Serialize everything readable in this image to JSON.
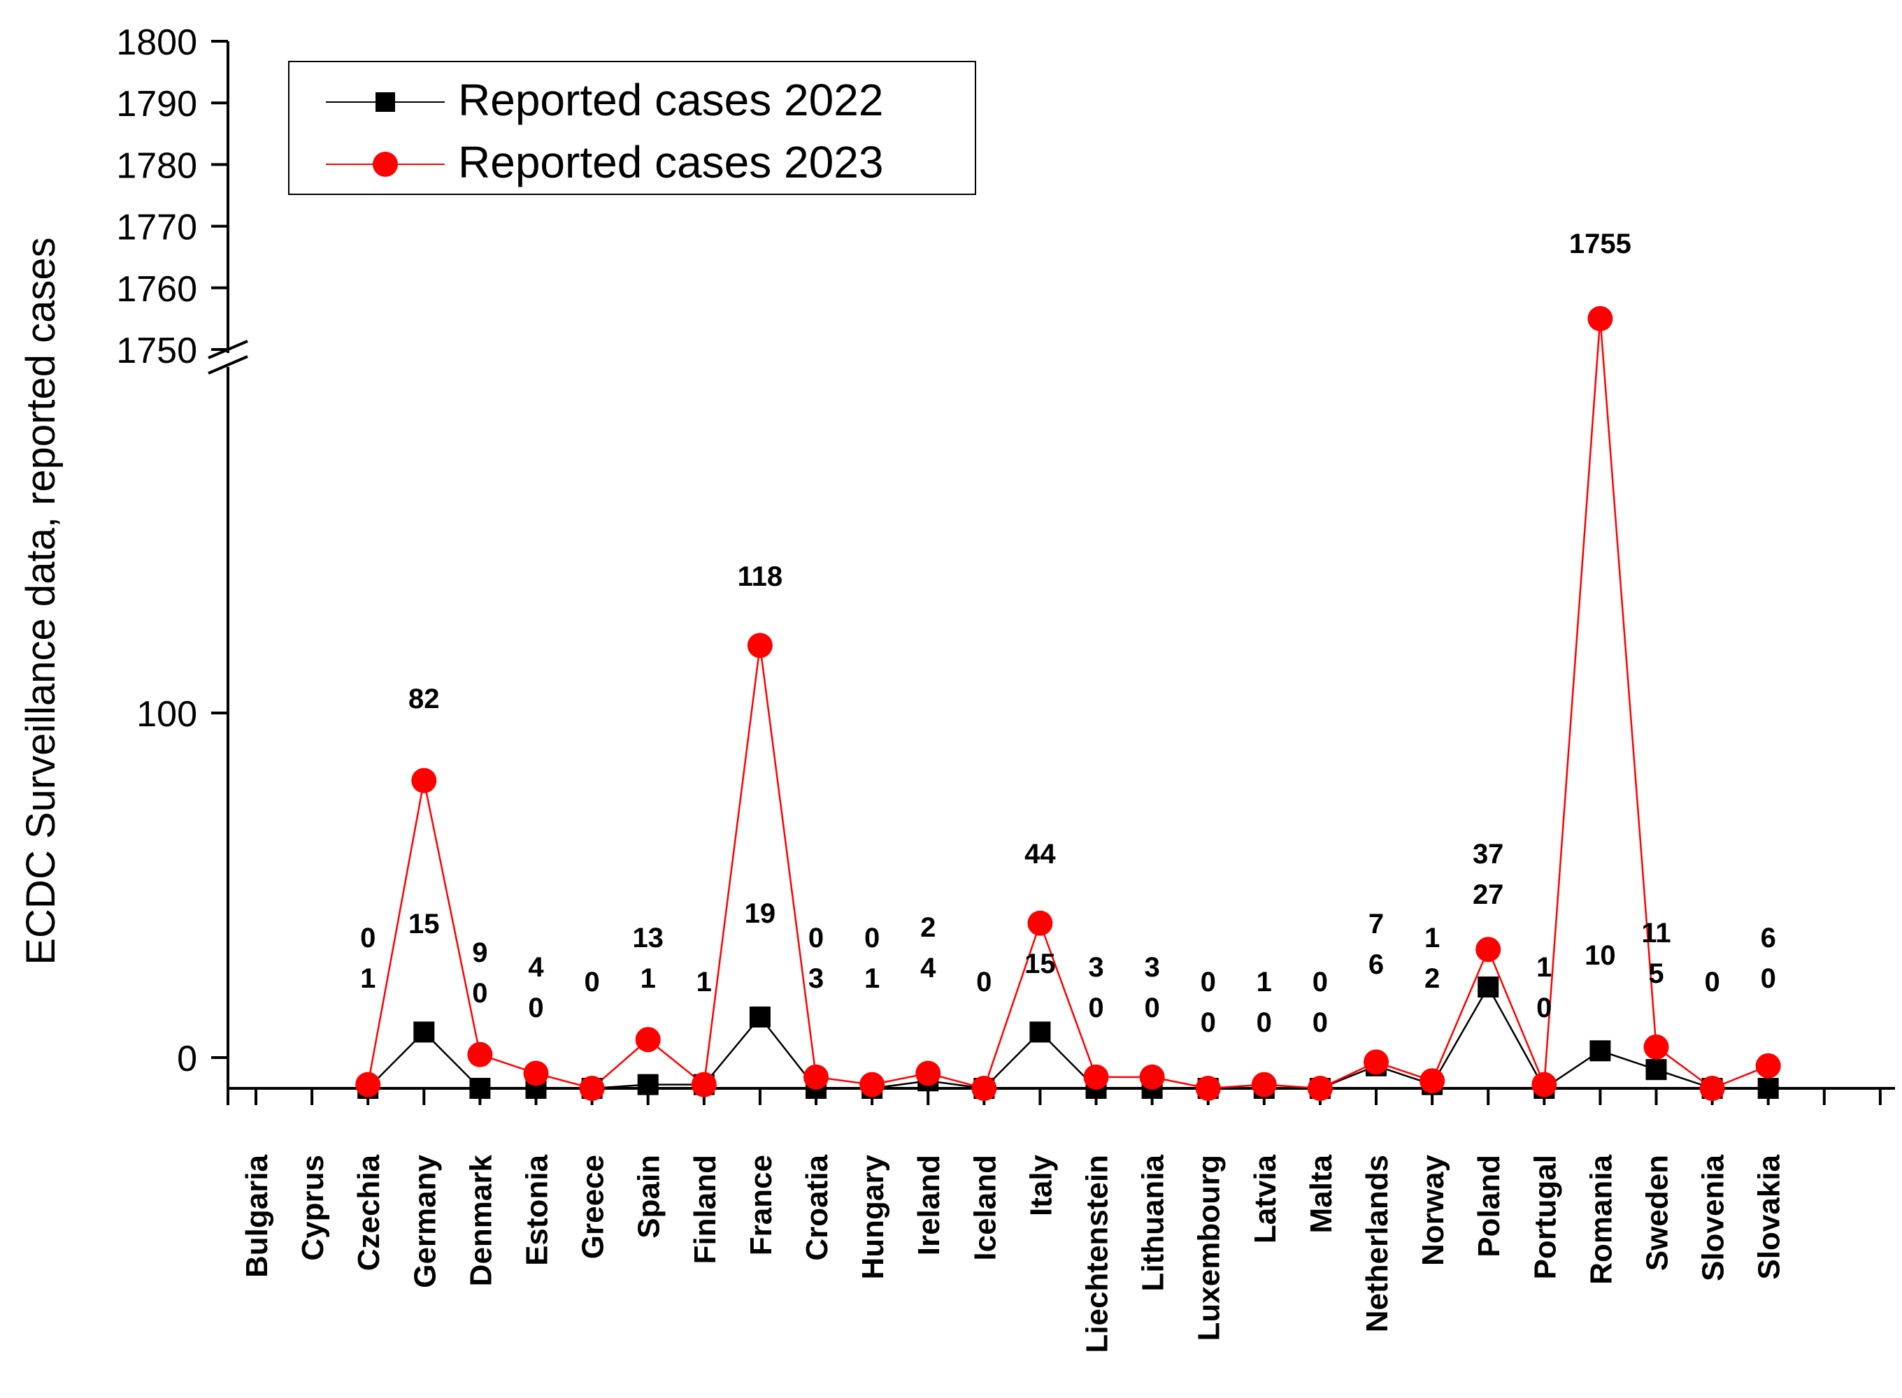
{
  "chart_data": {
    "type": "line",
    "ylabel": "ECDC Surveillance data, reported cases",
    "xlabel": "",
    "axis_break": true,
    "y_lower_ticks": [
      0,
      100
    ],
    "y_upper_ticks": [
      1750,
      1760,
      1770,
      1780,
      1790,
      1800
    ],
    "categories": [
      "Bulgaria",
      "Cyprus",
      "Czechia",
      "Germany",
      "Denmark",
      "Estonia",
      "Greece",
      "Spain",
      "Finland",
      "France",
      "Croatia",
      "Hungary",
      "Ireland",
      "Iceland",
      "Italy",
      "Liechtenstein",
      "Lithuania",
      "Luxembourg",
      "Latvia",
      "Malta",
      "Netherlands",
      "Norway",
      "Poland",
      "Portugal",
      "Romania",
      "Sweden",
      "Slovenia",
      "Slovakia"
    ],
    "series": [
      {
        "name": "Reported cases 2022",
        "color": "#000000",
        "marker": "square",
        "values": [
          null,
          null,
          0,
          15,
          0,
          0,
          0,
          1,
          1,
          19,
          0,
          0,
          2,
          0,
          15,
          0,
          0,
          0,
          0,
          0,
          6,
          1,
          27,
          0,
          10,
          5,
          0,
          0
        ]
      },
      {
        "name": "Reported cases 2023",
        "color": "#ff0000",
        "marker": "circle",
        "values": [
          null,
          null,
          1,
          82,
          9,
          4,
          0,
          13,
          1,
          118,
          3,
          1,
          4,
          0,
          44,
          3,
          3,
          0,
          1,
          0,
          7,
          2,
          37,
          1,
          1755,
          11,
          0,
          6
        ]
      }
    ],
    "legend": {
      "position": "top-left",
      "entries": [
        "Reported cases 2022",
        "Reported cases 2023"
      ]
    },
    "data_labels": [
      {
        "index": 2,
        "text": [
          "0",
          "1"
        ]
      },
      {
        "index": 3,
        "text": [
          "82"
        ]
      },
      {
        "index": 3,
        "text": [
          "15"
        ]
      },
      {
        "index": 4,
        "text": [
          "9",
          "0"
        ]
      },
      {
        "index": 5,
        "text": [
          "4",
          "0"
        ]
      },
      {
        "index": 6,
        "text": [
          "0"
        ]
      },
      {
        "index": 7,
        "text": [
          "13",
          "1"
        ]
      },
      {
        "index": 8,
        "text": [
          "1"
        ]
      },
      {
        "index": 9,
        "text": [
          "118"
        ]
      },
      {
        "index": 9,
        "text": [
          "19"
        ]
      },
      {
        "index": 10,
        "text": [
          "0",
          "3"
        ]
      },
      {
        "index": 11,
        "text": [
          "0",
          "1"
        ]
      },
      {
        "index": 12,
        "text": [
          "2",
          "4"
        ]
      },
      {
        "index": 13,
        "text": [
          "0"
        ]
      },
      {
        "index": 14,
        "text": [
          "44"
        ]
      },
      {
        "index": 14,
        "text": [
          "15"
        ]
      },
      {
        "index": 15,
        "text": [
          "3",
          "0"
        ]
      },
      {
        "index": 16,
        "text": [
          "3",
          "0"
        ]
      },
      {
        "index": 17,
        "text": [
          "0",
          "0"
        ]
      },
      {
        "index": 18,
        "text": [
          "1",
          "0"
        ]
      },
      {
        "index": 19,
        "text": [
          "0",
          "0"
        ]
      },
      {
        "index": 20,
        "text": [
          "7",
          "6"
        ]
      },
      {
        "index": 21,
        "text": [
          "1",
          "2"
        ]
      },
      {
        "index": 22,
        "text": [
          "37",
          "27"
        ]
      },
      {
        "index": 23,
        "text": [
          "1",
          "0"
        ]
      },
      {
        "index": 24,
        "text": [
          "1755"
        ]
      },
      {
        "index": 24,
        "text": [
          "10"
        ]
      },
      {
        "index": 25,
        "text": [
          "11",
          "5"
        ]
      },
      {
        "index": 26,
        "text": [
          "0"
        ]
      },
      {
        "index": 27,
        "text": [
          "6",
          "0"
        ]
      }
    ]
  }
}
